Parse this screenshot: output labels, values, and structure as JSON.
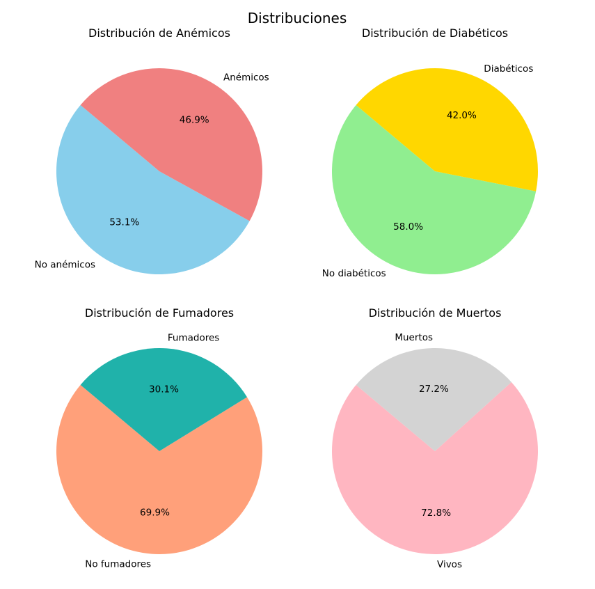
{
  "figure": {
    "title": "Distribuciones"
  },
  "chart_data": [
    {
      "type": "pie",
      "title": "Distribución de Anémicos",
      "labels": [
        "No anémicos",
        "Anémicos"
      ],
      "values": [
        53.1,
        46.9
      ],
      "autopct": [
        "53.1%",
        "46.9%"
      ],
      "colors": [
        "#87ceeb",
        "#f08080"
      ],
      "start_angle_deg": 140
    },
    {
      "type": "pie",
      "title": "Distribución de Diabéticos",
      "labels": [
        "No diabéticos",
        "Diabéticos"
      ],
      "values": [
        58.0,
        42.0
      ],
      "autopct": [
        "58.0%",
        "42.0%"
      ],
      "colors": [
        "#90ee90",
        "#ffd700"
      ],
      "start_angle_deg": 140
    },
    {
      "type": "pie",
      "title": "Distribución de Fumadores",
      "labels": [
        "No fumadores",
        "Fumadores"
      ],
      "values": [
        69.9,
        30.1
      ],
      "autopct": [
        "69.9%",
        "30.1%"
      ],
      "colors": [
        "#ffa07a",
        "#20b2aa"
      ],
      "start_angle_deg": 140
    },
    {
      "type": "pie",
      "title": "Distribución de Muertos",
      "labels": [
        "Vivos",
        "Muertos"
      ],
      "values": [
        72.8,
        27.2
      ],
      "autopct": [
        "72.8%",
        "27.2%"
      ],
      "colors": [
        "#ffb6c1",
        "#d3d3d3"
      ],
      "start_angle_deg": 140
    }
  ]
}
